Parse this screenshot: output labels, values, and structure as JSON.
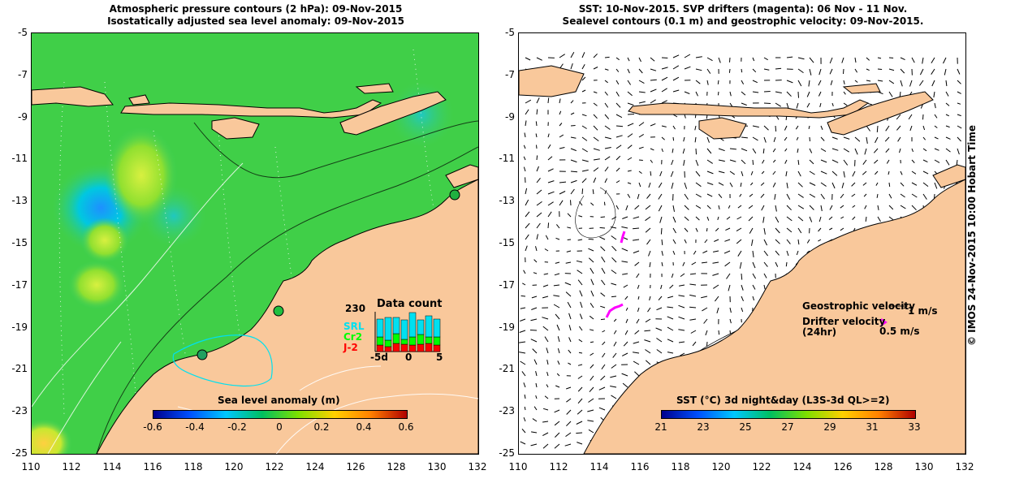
{
  "left": {
    "title_line1": "Atmospheric pressure contours (2 hPa): 09-Nov-2015",
    "title_line2": "Isostatically adjusted sea level anomaly: 09-Nov-2015",
    "colorbar_label": "Sea level anomaly (m)",
    "colorbar_ticks": [
      "-0.6",
      "-0.4",
      "-0.2",
      "0",
      "0.2",
      "0.4",
      "0.6"
    ],
    "colorbar_colors": [
      "#00008c",
      "#0050ff",
      "#00c8ff",
      "#00c060",
      "#7ee000",
      "#ffd000",
      "#ff8000",
      "#b00000"
    ],
    "datacount": {
      "title": "Data count",
      "max_label": "230",
      "x_ticks": [
        "-5d",
        "0",
        "5"
      ],
      "legend": [
        "SRL",
        "Cr2",
        "J-2"
      ],
      "legend_colors": [
        "#00e0f0",
        "#00ff00",
        "#ff0000"
      ]
    }
  },
  "right": {
    "title_line1": "SST: 10-Nov-2015. SVP drifters (magenta): 06 Nov - 11 Nov.",
    "title_line2": "Sealevel contours (0.1 m) and geostrophic velocity: 09-Nov-2015.",
    "colorbar_label": "SST (°C) 3d night&day (L3S-3d QL>=2)",
    "colorbar_ticks": [
      "21",
      "23",
      "25",
      "27",
      "29",
      "31",
      "33"
    ],
    "colorbar_colors": [
      "#00008c",
      "#0050ff",
      "#00c8ff",
      "#00c060",
      "#7ee000",
      "#ffd000",
      "#ff8000",
      "#b00000"
    ],
    "geo_velocity_label": "Geostrophic velocity",
    "geo_velocity_scale": "1 m/s",
    "drifter_velocity_label_1": "Drifter velocity",
    "drifter_velocity_label_2": "(24hr)",
    "drifter_velocity_scale": "0.5 m/s"
  },
  "axes": {
    "x_ticks": [
      "110",
      "112",
      "114",
      "116",
      "118",
      "120",
      "122",
      "124",
      "126",
      "128",
      "130",
      "132"
    ],
    "y_ticks": [
      "-5",
      "-7",
      "-9",
      "-11",
      "-13",
      "-15",
      "-17",
      "-19",
      "-21",
      "-23",
      "-25"
    ],
    "lon_range": [
      110,
      132
    ],
    "lat_range": [
      -25,
      -5
    ]
  },
  "copyright": "© IMOS 24-Nov-2015 10:00 Hobart Time",
  "colors": {
    "land": "#f9c89b",
    "sea_green": "#3fcf3f",
    "drifter": "#ff00ff"
  }
}
